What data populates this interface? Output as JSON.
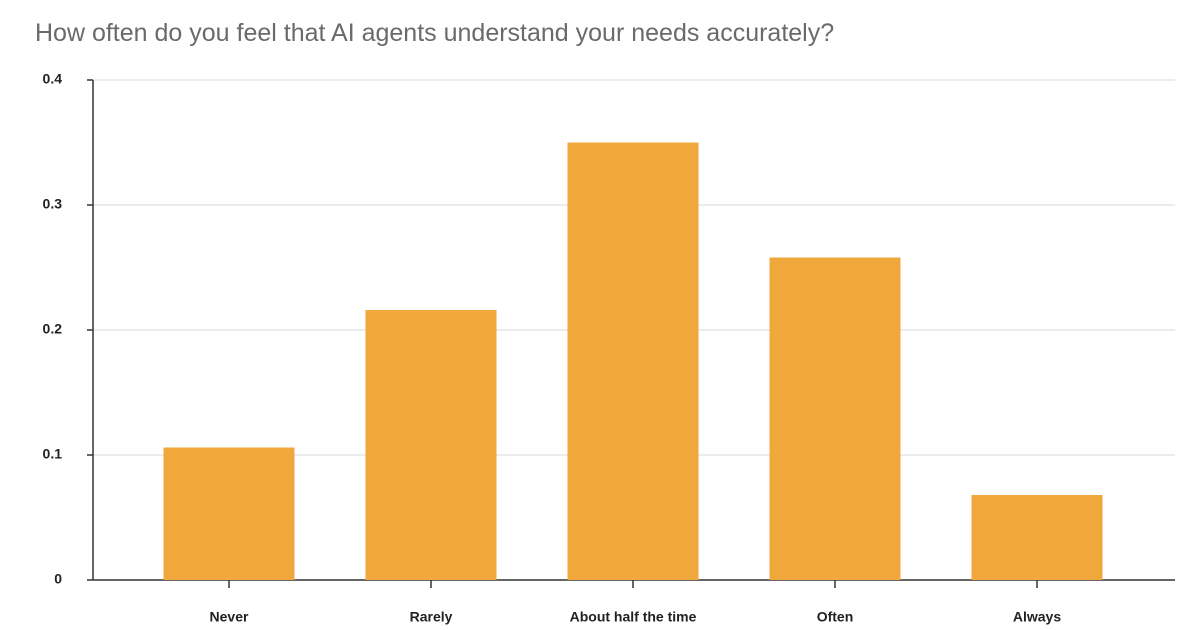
{
  "chart_data": {
    "type": "bar",
    "title": "How often do you feel that AI agents understand your needs accurately?",
    "categories": [
      "Never",
      "Rarely",
      "About half the time",
      "Often",
      "Always"
    ],
    "values": [
      0.106,
      0.216,
      0.35,
      0.258,
      0.068
    ],
    "color": "#f0a83c",
    "ylim": [
      0,
      0.4
    ],
    "yticks": [
      0,
      0.1,
      0.2,
      0.3,
      0.4
    ],
    "grid": true
  }
}
